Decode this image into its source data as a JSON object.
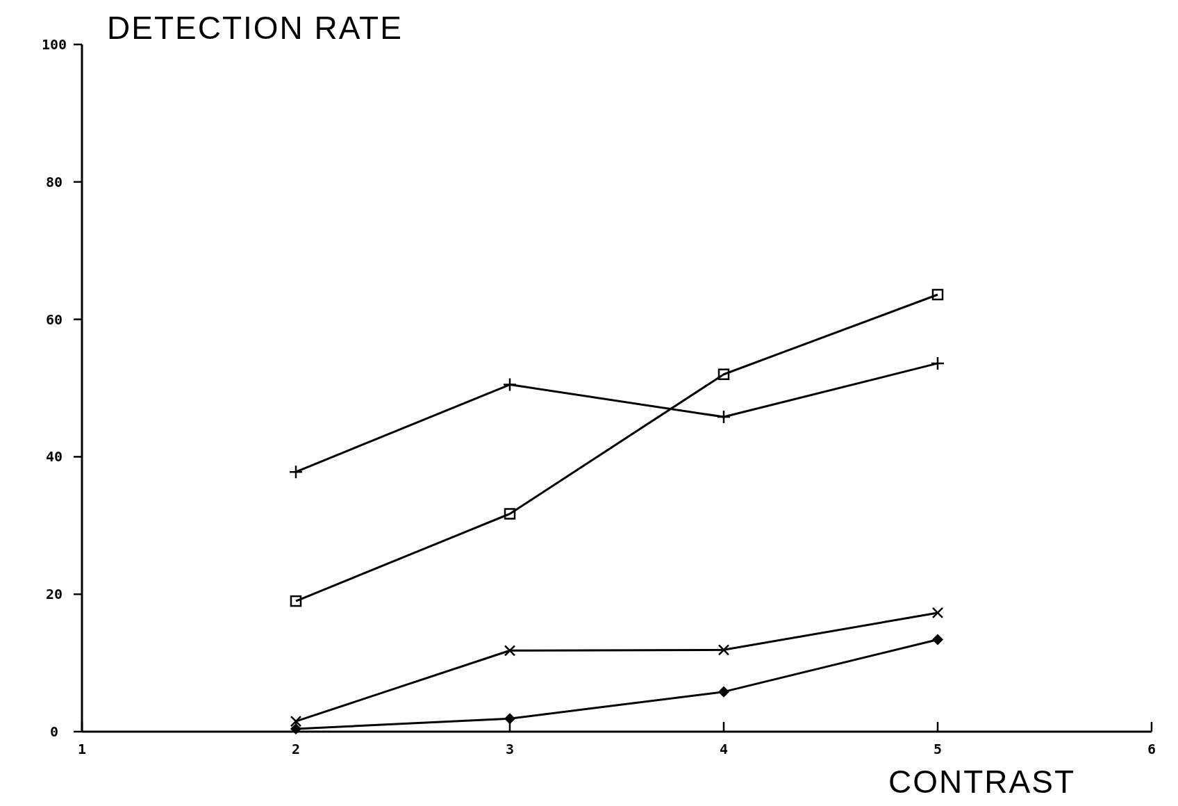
{
  "chart_data": {
    "type": "line",
    "xlabel": "CONTRAST",
    "ylabel": "DETECTION RATE",
    "x": [
      2,
      3,
      4,
      5
    ],
    "series": [
      {
        "color": "#000000",
        "marker": "square",
        "values": [
          19.0,
          31.7,
          52.0,
          63.6
        ]
      },
      {
        "color": "#000000",
        "marker": "cross",
        "values": [
          37.8,
          50.5,
          45.8,
          53.6
        ]
      },
      {
        "color": "#000000",
        "marker": "x",
        "values": [
          1.5,
          11.8,
          11.9,
          17.3
        ]
      },
      {
        "color": "#000000",
        "marker": "diamond",
        "values": [
          0.4,
          1.9,
          5.8,
          13.4
        ]
      }
    ],
    "xlim": [
      1,
      6
    ],
    "xticks": [
      1,
      2,
      3,
      4,
      5,
      6
    ],
    "ylim": [
      0,
      100
    ],
    "yticks": [
      0,
      20,
      40,
      60,
      80,
      100
    ],
    "grid": false,
    "line_style": "solid"
  }
}
